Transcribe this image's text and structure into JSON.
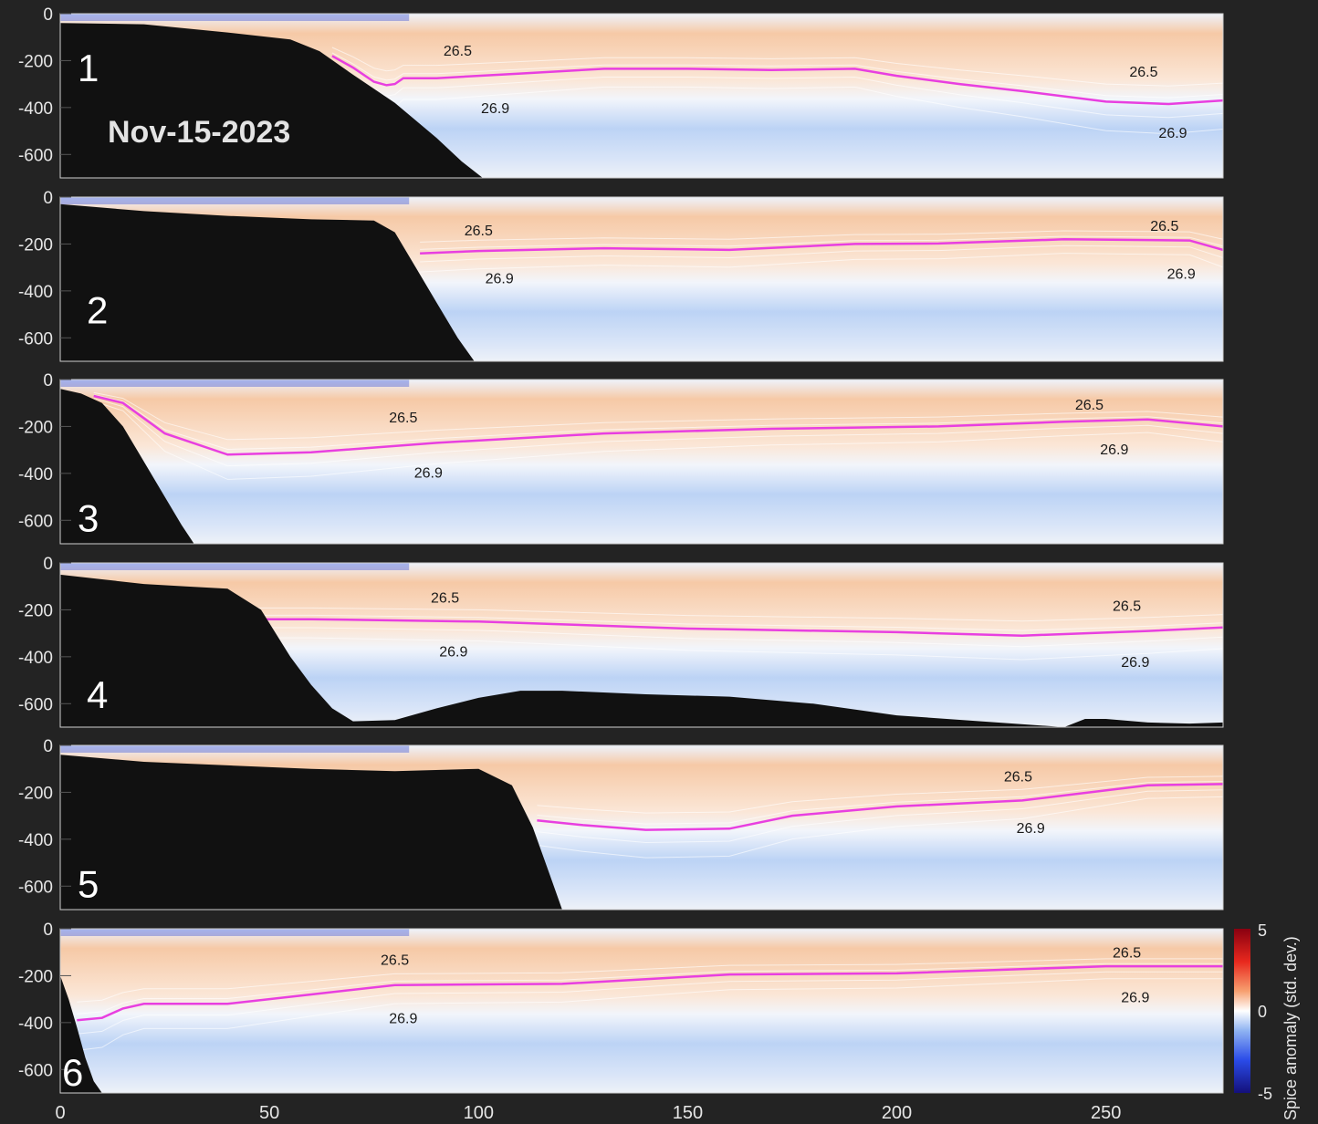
{
  "date_label": "Nov-15-2023",
  "colors": {
    "background": "#232323",
    "warm": "#f6c9a6",
    "cool": "#bcd3f5",
    "deep_cool": "#1f3fd6",
    "bathymetry": "#111111",
    "isopycnal_highlight": "#e83fe0",
    "contour": "#ffffff"
  },
  "chart_data": {
    "type": "heatmap",
    "xlim": [
      0,
      278
    ],
    "ylim": [
      -700,
      0
    ],
    "x_ticks": [
      "0",
      "50",
      "100",
      "150",
      "200",
      "250"
    ],
    "x_tick_values": [
      0,
      50,
      100,
      150,
      200,
      250
    ],
    "y_ticks": [
      "0",
      "-200",
      "-400",
      "-600"
    ],
    "y_tick_values": [
      0,
      -200,
      -400,
      -600
    ],
    "colorbar": {
      "label": "Spice anomaly (std. dev.)",
      "ticks": [
        "5",
        "0",
        "-5"
      ],
      "tick_values": [
        5,
        0,
        -5
      ],
      "range": [
        -5,
        5
      ]
    },
    "panels": [
      {
        "label": "1",
        "isopycnal_x": [
          65,
          70,
          75,
          78,
          80,
          82,
          90,
          110,
          130,
          150,
          170,
          190,
          200,
          215,
          230,
          250,
          265,
          278
        ],
        "isopycnal_y": [
          -180,
          -230,
          -290,
          -305,
          -300,
          -275,
          -275,
          -255,
          -235,
          -235,
          -240,
          -235,
          -265,
          -300,
          -330,
          -375,
          -385,
          -370
        ],
        "bathy_x": [
          0,
          20,
          40,
          55,
          62,
          70,
          80,
          90,
          96,
          101
        ],
        "bathy_y": [
          -40,
          -45,
          -80,
          -110,
          -160,
          -260,
          -380,
          -530,
          -630,
          -700
        ],
        "contour_labels": [
          {
            "text": "26.5",
            "x": 95,
            "y": -155
          },
          {
            "text": "26.9",
            "x": 104,
            "y": -400
          },
          {
            "text": "26.5",
            "x": 259,
            "y": -245
          },
          {
            "text": "26.9",
            "x": 266,
            "y": -505
          }
        ]
      },
      {
        "label": "2",
        "isopycnal_x": [
          86,
          100,
          130,
          160,
          190,
          210,
          240,
          270,
          278
        ],
        "isopycnal_y": [
          -240,
          -230,
          -218,
          -225,
          -200,
          -198,
          -180,
          -185,
          -225
        ],
        "bathy_x": [
          0,
          20,
          40,
          60,
          75,
          80,
          85,
          90,
          95,
          99
        ],
        "bathy_y": [
          -30,
          -60,
          -80,
          -95,
          -100,
          -150,
          -300,
          -450,
          -600,
          -700
        ],
        "contour_labels": [
          {
            "text": "26.5",
            "x": 100,
            "y": -140
          },
          {
            "text": "26.9",
            "x": 105,
            "y": -345
          },
          {
            "text": "26.5",
            "x": 264,
            "y": -120
          },
          {
            "text": "26.9",
            "x": 268,
            "y": -325
          }
        ]
      },
      {
        "label": "3",
        "isopycnal_x": [
          8,
          15,
          25,
          40,
          60,
          90,
          130,
          170,
          210,
          240,
          260,
          278
        ],
        "isopycnal_y": [
          -70,
          -100,
          -230,
          -320,
          -310,
          -270,
          -230,
          -210,
          -200,
          -180,
          -170,
          -200
        ],
        "bathy_x": [
          0,
          5,
          10,
          15,
          20,
          25,
          29,
          32
        ],
        "bathy_y": [
          -40,
          -60,
          -100,
          -200,
          -350,
          -500,
          -620,
          -700
        ],
        "contour_labels": [
          {
            "text": "26.5",
            "x": 82,
            "y": -160
          },
          {
            "text": "26.9",
            "x": 88,
            "y": -395
          },
          {
            "text": "26.5",
            "x": 246,
            "y": -105
          },
          {
            "text": "26.9",
            "x": 252,
            "y": -295
          }
        ]
      },
      {
        "label": "4",
        "isopycnal_x": [
          46,
          60,
          100,
          150,
          200,
          230,
          260,
          278
        ],
        "isopycnal_y": [
          -240,
          -240,
          -250,
          -280,
          -295,
          -310,
          -290,
          -275
        ],
        "bathy_x": [
          0,
          10,
          20,
          30,
          40,
          48,
          55,
          60,
          65,
          70,
          80,
          90,
          100,
          110,
          120,
          140,
          160,
          180,
          200,
          240,
          245,
          250,
          260,
          270,
          278
        ],
        "bathy_y": [
          -50,
          -70,
          -90,
          -100,
          -110,
          -200,
          -400,
          -520,
          -620,
          -675,
          -670,
          -620,
          -575,
          -545,
          -545,
          -560,
          -570,
          -600,
          -650,
          -700,
          -665,
          -665,
          -680,
          -685,
          -680
        ],
        "contour_labels": [
          {
            "text": "26.5",
            "x": 92,
            "y": -145
          },
          {
            "text": "26.9",
            "x": 94,
            "y": -375
          },
          {
            "text": "26.5",
            "x": 255,
            "y": -180
          },
          {
            "text": "26.9",
            "x": 257,
            "y": -420
          }
        ]
      },
      {
        "label": "5",
        "isopycnal_x": [
          114,
          125,
          140,
          160,
          175,
          200,
          230,
          260,
          278
        ],
        "isopycnal_y": [
          -320,
          -340,
          -360,
          -355,
          -300,
          -260,
          -235,
          -170,
          -165
        ],
        "bathy_x": [
          0,
          20,
          40,
          60,
          80,
          100,
          108,
          113,
          117,
          120
        ],
        "bathy_y": [
          -40,
          -70,
          -85,
          -100,
          -110,
          -100,
          -170,
          -350,
          -550,
          -700
        ],
        "contour_labels": [
          {
            "text": "26.5",
            "x": 229,
            "y": -130
          },
          {
            "text": "26.9",
            "x": 232,
            "y": -350
          }
        ]
      },
      {
        "label": "6",
        "isopycnal_x": [
          4,
          10,
          15,
          20,
          40,
          60,
          80,
          120,
          160,
          200,
          250,
          278
        ],
        "isopycnal_y": [
          -390,
          -380,
          -340,
          -320,
          -320,
          -280,
          -240,
          -235,
          -195,
          -190,
          -160,
          -160
        ],
        "bathy_x": [
          0,
          2,
          4,
          6,
          8,
          10
        ],
        "bathy_y": [
          -200,
          -300,
          -420,
          -550,
          -650,
          -700
        ],
        "contour_labels": [
          {
            "text": "26.5",
            "x": 80,
            "y": -130
          },
          {
            "text": "26.9",
            "x": 82,
            "y": -380
          },
          {
            "text": "26.5",
            "x": 255,
            "y": -100
          },
          {
            "text": "26.9",
            "x": 257,
            "y": -290
          }
        ]
      }
    ]
  }
}
